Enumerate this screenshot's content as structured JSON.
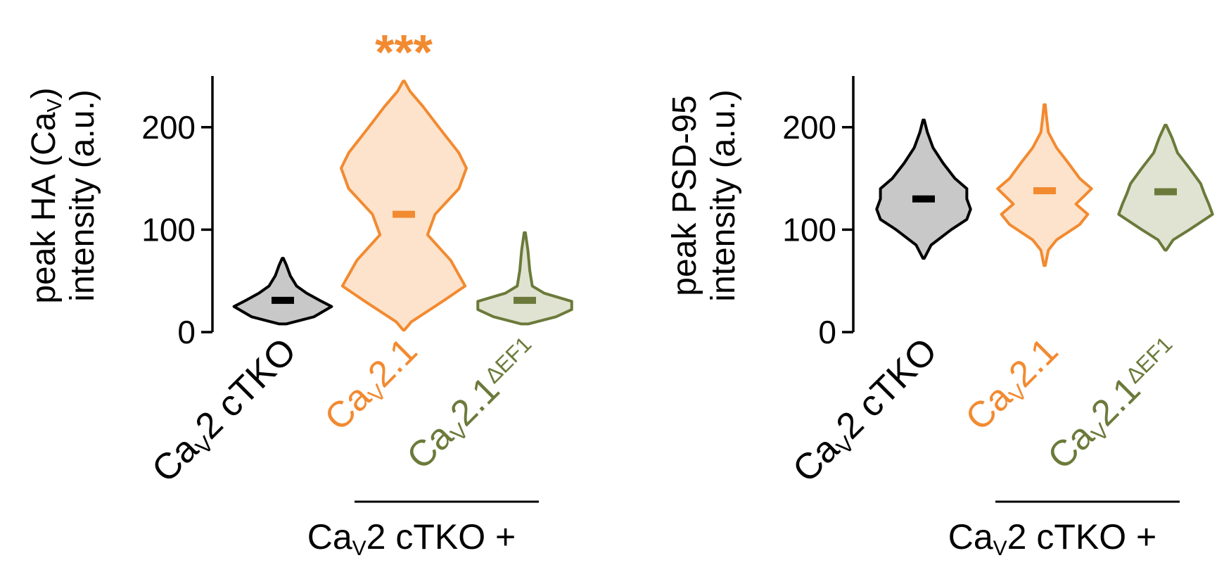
{
  "chart_data": [
    {
      "type": "violin",
      "ylabel": [
        [
          {
            "text": "peak HA (Ca"
          },
          {
            "text": "V",
            "script": "sub"
          },
          {
            "text": ")"
          }
        ],
        [
          {
            "text": "intensity (a.u.)"
          }
        ]
      ],
      "ylim": [
        0,
        250
      ],
      "yticks": [
        0,
        100,
        200
      ],
      "categories": [
        [
          {
            "text": "Ca"
          },
          {
            "text": "V",
            "script": "sub"
          },
          {
            "text": "2 cTKO"
          }
        ],
        [
          {
            "text": "Ca"
          },
          {
            "text": "V",
            "script": "sub"
          },
          {
            "text": "2.1"
          }
        ],
        [
          {
            "text": "Ca"
          },
          {
            "text": "V",
            "script": "sub"
          },
          {
            "text": "2.1"
          },
          {
            "text": "ΔEF1",
            "script": "super"
          }
        ]
      ],
      "violins": [
        {
          "color": "#000000",
          "fill": "#c8c8c8",
          "median": 31,
          "density": {
            "y": [
              8,
              15,
              25,
              30,
              38,
              45,
              55,
              65,
              72
            ],
            "width": [
              0.06,
              0.5,
              0.78,
              0.62,
              0.38,
              0.22,
              0.12,
              0.06,
              0.01
            ]
          }
        },
        {
          "color": "#f28a30",
          "fill": "#fde3cc",
          "median": 115,
          "density": {
            "y": [
              2,
              10,
              30,
              45,
              70,
              95,
              115,
              140,
              160,
              175,
              200,
              220,
              235,
              245
            ],
            "width": [
              0.01,
              0.12,
              0.62,
              0.98,
              0.75,
              0.38,
              0.5,
              0.88,
              1.0,
              0.88,
              0.56,
              0.31,
              0.1,
              0.01
            ]
          }
        },
        {
          "color": "#6b7a3a",
          "fill": "#e0e3d2",
          "median": 31,
          "density": {
            "y": [
              8,
              15,
              22,
              30,
              38,
              45,
              60,
              80,
              97
            ],
            "width": [
              0.06,
              0.5,
              0.75,
              0.75,
              0.31,
              0.12,
              0.08,
              0.05,
              0.01
            ]
          }
        }
      ],
      "annotations": [
        {
          "text": "***",
          "category": 1,
          "color": "#f28a30"
        }
      ],
      "group_label": {
        "runs": [
          {
            "text": "Ca"
          },
          {
            "text": "V",
            "script": "sub"
          },
          {
            "text": "2 cTKO +"
          }
        ],
        "categories": [
          1,
          2
        ]
      }
    },
    {
      "type": "violin",
      "ylabel": [
        [
          {
            "text": "peak PSD-95"
          }
        ],
        [
          {
            "text": "intensity (a.u.)"
          }
        ]
      ],
      "ylim": [
        0,
        250
      ],
      "yticks": [
        0,
        100,
        200
      ],
      "categories": [
        [
          {
            "text": "Ca"
          },
          {
            "text": "V",
            "script": "sub"
          },
          {
            "text": "2 cTKO"
          }
        ],
        [
          {
            "text": "Ca"
          },
          {
            "text": "V",
            "script": "sub"
          },
          {
            "text": "2.1"
          }
        ],
        [
          {
            "text": "Ca"
          },
          {
            "text": "V",
            "script": "sub"
          },
          {
            "text": "2.1"
          },
          {
            "text": "ΔEF1",
            "script": "super"
          }
        ]
      ],
      "violins": [
        {
          "color": "#000000",
          "fill": "#c8c8c8",
          "median": 130,
          "density": {
            "y": [
              72,
              85,
              100,
              110,
              120,
              130,
              140,
              150,
              165,
              180,
              195,
              207
            ],
            "width": [
              0.01,
              0.12,
              0.44,
              0.69,
              0.75,
              0.69,
              0.69,
              0.5,
              0.31,
              0.15,
              0.06,
              0.01
            ]
          }
        },
        {
          "color": "#f28a30",
          "fill": "#fde3cc",
          "median": 138,
          "density": {
            "y": [
              65,
              80,
              90,
              105,
              115,
              125,
              140,
              150,
              165,
              180,
              195,
              210,
              222
            ],
            "width": [
              0.01,
              0.06,
              0.19,
              0.56,
              0.69,
              0.5,
              0.75,
              0.56,
              0.38,
              0.19,
              0.06,
              0.03,
              0.01
            ]
          }
        },
        {
          "color": "#6b7a3a",
          "fill": "#e0e3d2",
          "median": 137,
          "density": {
            "y": [
              80,
              90,
              100,
              115,
              125,
              135,
              145,
              160,
              175,
              190,
              202
            ],
            "width": [
              0.01,
              0.12,
              0.38,
              0.75,
              0.69,
              0.62,
              0.56,
              0.38,
              0.19,
              0.1,
              0.01
            ]
          }
        }
      ],
      "annotations": [],
      "group_label": {
        "runs": [
          {
            "text": "Ca"
          },
          {
            "text": "V",
            "script": "sub"
          },
          {
            "text": "2 cTKO +"
          }
        ],
        "categories": [
          1,
          2
        ]
      }
    }
  ]
}
